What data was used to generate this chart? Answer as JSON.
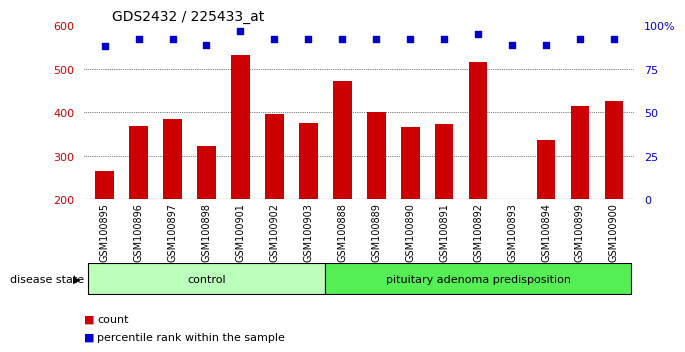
{
  "title": "GDS2432 / 225433_at",
  "samples": [
    "GSM100895",
    "GSM100896",
    "GSM100897",
    "GSM100898",
    "GSM100901",
    "GSM100902",
    "GSM100903",
    "GSM100888",
    "GSM100889",
    "GSM100890",
    "GSM100891",
    "GSM100892",
    "GSM100893",
    "GSM100894",
    "GSM100899",
    "GSM100900"
  ],
  "counts": [
    265,
    368,
    385,
    322,
    532,
    397,
    375,
    472,
    400,
    365,
    372,
    516,
    200,
    335,
    415,
    425
  ],
  "percentiles": [
    88,
    92,
    92,
    89,
    97,
    92,
    92,
    92,
    92,
    92,
    92,
    95,
    89,
    89,
    92,
    92
  ],
  "bar_color": "#cc0000",
  "dot_color": "#0000cc",
  "ylim_left": [
    200,
    600
  ],
  "ylim_right": [
    0,
    100
  ],
  "yticks_left": [
    200,
    300,
    400,
    500,
    600
  ],
  "yticks_right": [
    0,
    25,
    50,
    75,
    100
  ],
  "ytick_labels_right": [
    "0",
    "25",
    "50",
    "75",
    "100%"
  ],
  "grid_values": [
    300,
    400,
    500
  ],
  "control_color": "#bbffbb",
  "pituitary_color": "#55ee55",
  "disease_state_label": "disease state",
  "control_label": "control",
  "pituitary_label": "pituitary adenoma predisposition",
  "legend_count": "count",
  "legend_percentile": "percentile rank within the sample",
  "n_control": 7,
  "n_pituitary": 9,
  "xtick_bg_color": "#dddddd"
}
